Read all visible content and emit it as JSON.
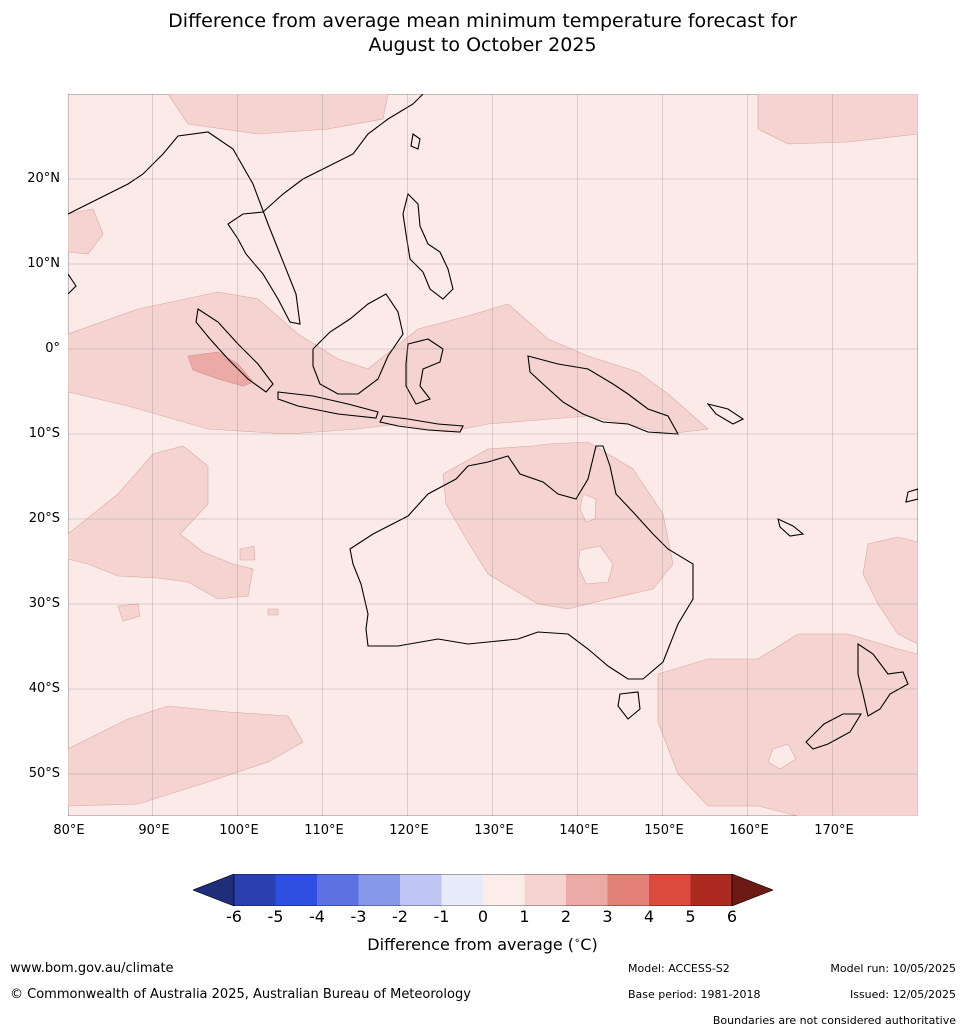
{
  "title": {
    "line1": "Difference from average mean minimum temperature forecast for",
    "line2": "August to October 2025"
  },
  "map": {
    "lon_labels": [
      "80°E",
      "90°E",
      "100°E",
      "110°E",
      "120°E",
      "130°E",
      "140°E",
      "150°E",
      "160°E",
      "170°E"
    ],
    "lat_labels": [
      "20°N",
      "10°N",
      "0°",
      "10°S",
      "20°S",
      "30°S",
      "40°S",
      "50°S"
    ],
    "background_fill": "#fbeae8"
  },
  "colorbar": {
    "ticks": [
      "-6",
      "-5",
      "-4",
      "-3",
      "-2",
      "-1",
      "0",
      "1",
      "2",
      "3",
      "4",
      "5",
      "6"
    ],
    "colors": [
      "#1f2e7a",
      "#2a3fb0",
      "#2f4fe0",
      "#5c72e2",
      "#8797ea",
      "#bfc6f3",
      "#e8ebfa",
      "#fcecea",
      "#f4d3d0",
      "#ebaaa5",
      "#e38078",
      "#dc4a3d",
      "#ac2a20",
      "#6e1a14"
    ],
    "label": "Difference from average (",
    "label_unit": "C)"
  },
  "footer": {
    "website": "www.bom.gov.au/climate",
    "copyright": "© Commonwealth of Australia 2025, Australian Bureau of Meteorology",
    "model": "Model: ACCESS-S2",
    "base_period": "Base period: 1981-2018",
    "model_run": "Model run: 10/05/2025",
    "issued": "Issued: 12/05/2025",
    "disclaimer": "Boundaries are not considered authoritative"
  }
}
